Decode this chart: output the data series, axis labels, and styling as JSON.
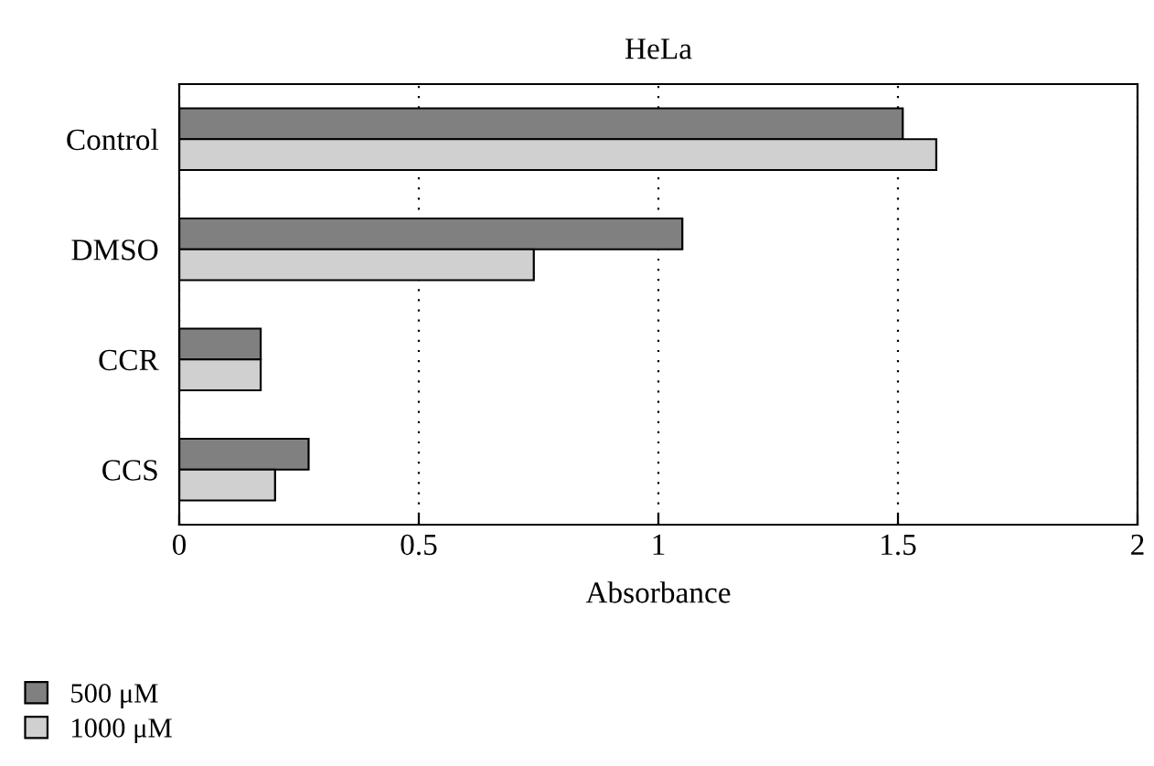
{
  "chart_data": {
    "type": "bar",
    "orientation": "horizontal",
    "title": "HeLa",
    "xlabel": "Absorbance",
    "categories": [
      "Control",
      "DMSO",
      "CCR",
      "CCS"
    ],
    "series": [
      {
        "name": "500 μM",
        "color": "#808080",
        "values": [
          1.51,
          1.05,
          0.17,
          0.27
        ]
      },
      {
        "name": "1000 μM",
        "color": "#d0d0d0",
        "values": [
          1.58,
          0.74,
          0.17,
          0.2
        ]
      }
    ],
    "xlim": [
      0,
      2
    ],
    "xticks": [
      0,
      0.5,
      1,
      1.5,
      2
    ],
    "grid": "x",
    "legend": "bottom"
  }
}
